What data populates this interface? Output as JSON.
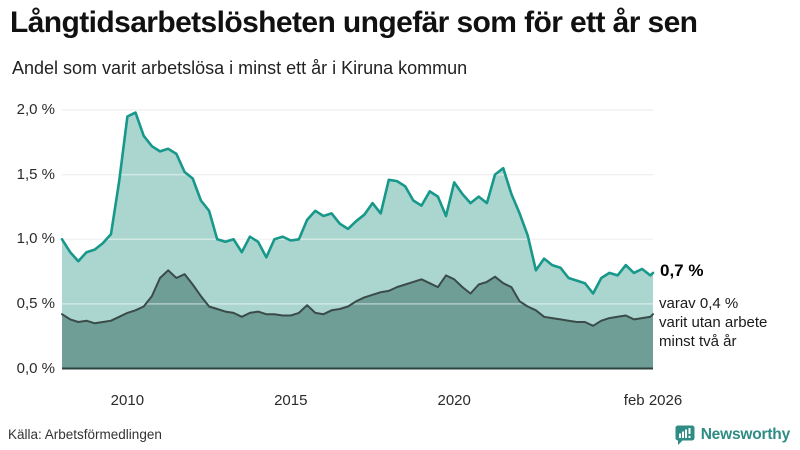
{
  "header": {
    "title": "Långtidsarbetslösheten ungefär som för ett år sen",
    "subtitle": "Andel som varit arbetslösa i minst ett år i Kiruna kommun"
  },
  "chart_data": {
    "type": "area",
    "title": "Långtidsarbetslösheten ungefär som för ett år sen",
    "subtitle": "Andel som varit arbetslösa i minst ett år i Kiruna kommun",
    "unit": "%",
    "ylim": [
      0,
      2.0
    ],
    "grid": true,
    "yticks": [
      {
        "value": 0.0,
        "label": "0,0 %"
      },
      {
        "value": 0.5,
        "label": "0,5 %"
      },
      {
        "value": 1.0,
        "label": "1,0 %"
      },
      {
        "value": 1.5,
        "label": "1,5 %"
      },
      {
        "value": 2.0,
        "label": "2,0 %"
      }
    ],
    "xticks": [
      {
        "t": 2010,
        "label": "2010"
      },
      {
        "t": 2015,
        "label": "2015"
      },
      {
        "t": 2020,
        "label": "2020"
      },
      {
        "t": 2026.083,
        "label": "feb 2026"
      }
    ],
    "xrange": [
      2008.0,
      2026.083
    ],
    "x": [
      2008.0,
      2008.25,
      2008.5,
      2008.75,
      2009.0,
      2009.25,
      2009.5,
      2009.75,
      2010.0,
      2010.25,
      2010.5,
      2010.75,
      2011.0,
      2011.25,
      2011.5,
      2011.75,
      2012.0,
      2012.25,
      2012.5,
      2012.75,
      2013.0,
      2013.25,
      2013.5,
      2013.75,
      2014.0,
      2014.25,
      2014.5,
      2014.75,
      2015.0,
      2015.25,
      2015.5,
      2015.75,
      2016.0,
      2016.25,
      2016.5,
      2016.75,
      2017.0,
      2017.25,
      2017.5,
      2017.75,
      2018.0,
      2018.25,
      2018.5,
      2018.75,
      2019.0,
      2019.25,
      2019.5,
      2019.75,
      2020.0,
      2020.25,
      2020.5,
      2020.75,
      2021.0,
      2021.25,
      2021.5,
      2021.75,
      2022.0,
      2022.25,
      2022.5,
      2022.75,
      2023.0,
      2023.25,
      2023.5,
      2023.75,
      2024.0,
      2024.25,
      2024.5,
      2024.75,
      2025.0,
      2025.25,
      2025.5,
      2025.75,
      2026.0,
      2026.083
    ],
    "series": [
      {
        "name": "arbetslösa minst ett år",
        "line_color": "#17988b",
        "fill_color": "#abd6cf",
        "end_value_label": "0,7 %",
        "values": [
          1.0,
          0.9,
          0.83,
          0.9,
          0.92,
          0.97,
          1.04,
          1.45,
          1.95,
          1.98,
          1.8,
          1.72,
          1.68,
          1.7,
          1.66,
          1.52,
          1.47,
          1.3,
          1.22,
          1.0,
          0.98,
          1.0,
          0.9,
          1.02,
          0.98,
          0.86,
          1.0,
          1.02,
          0.99,
          1.0,
          1.15,
          1.22,
          1.18,
          1.2,
          1.12,
          1.08,
          1.14,
          1.19,
          1.28,
          1.2,
          1.46,
          1.45,
          1.41,
          1.3,
          1.26,
          1.37,
          1.33,
          1.18,
          1.44,
          1.35,
          1.28,
          1.33,
          1.28,
          1.5,
          1.55,
          1.35,
          1.2,
          1.03,
          0.76,
          0.85,
          0.8,
          0.78,
          0.7,
          0.68,
          0.66,
          0.58,
          0.7,
          0.74,
          0.72,
          0.8,
          0.74,
          0.77,
          0.72,
          0.74
        ]
      },
      {
        "name": "varav utan arbete minst två år",
        "line_color": "#3a4b48",
        "fill_color": "#6f9e97",
        "end_value_label": "0,4 %",
        "values": [
          0.42,
          0.38,
          0.36,
          0.37,
          0.35,
          0.36,
          0.37,
          0.4,
          0.43,
          0.45,
          0.48,
          0.56,
          0.7,
          0.76,
          0.7,
          0.73,
          0.65,
          0.56,
          0.48,
          0.46,
          0.44,
          0.43,
          0.4,
          0.43,
          0.44,
          0.42,
          0.42,
          0.41,
          0.41,
          0.43,
          0.49,
          0.43,
          0.42,
          0.45,
          0.46,
          0.48,
          0.52,
          0.55,
          0.57,
          0.59,
          0.6,
          0.63,
          0.65,
          0.67,
          0.69,
          0.66,
          0.63,
          0.72,
          0.69,
          0.63,
          0.58,
          0.65,
          0.67,
          0.71,
          0.66,
          0.63,
          0.52,
          0.48,
          0.45,
          0.4,
          0.39,
          0.38,
          0.37,
          0.36,
          0.36,
          0.33,
          0.37,
          0.39,
          0.4,
          0.41,
          0.38,
          0.39,
          0.4,
          0.42
        ]
      }
    ],
    "annotations": {
      "total_label": "0,7 %",
      "subset_lines": [
        "varav 0,4 %",
        "varit utan arbete",
        "minst två år"
      ]
    },
    "colors": {
      "gridline": "#e4e4e4",
      "gridline_overlay": "rgba(255,255,255,0.45)",
      "baseline": "#2c423e"
    }
  },
  "footer": {
    "source": "Källa: Arbetsförmedlingen",
    "brand": "Newsworthy",
    "brand_color": "#2e8c84"
  }
}
